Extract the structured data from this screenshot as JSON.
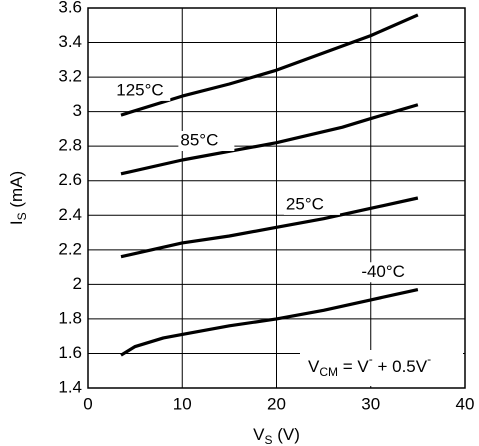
{
  "chart_data": {
    "type": "line",
    "xlabel": [
      "V",
      "S",
      " (V)"
    ],
    "ylabel": [
      "I",
      "S",
      " (mA)"
    ],
    "annotation": [
      "V",
      "CM",
      " = V",
      "-",
      " + 0.5V",
      "-"
    ],
    "xlim": [
      0,
      40
    ],
    "xticks": [
      0,
      10,
      20,
      30,
      40
    ],
    "ylim": [
      1.4,
      3.6
    ],
    "yticks": [
      1.4,
      1.6,
      1.8,
      2,
      2.2,
      2.4,
      2.6,
      2.8,
      3,
      3.2,
      3.4,
      3.6
    ],
    "grid": true,
    "series": [
      {
        "name": "125°C",
        "color": "#000000",
        "x": [
          3.5,
          10,
          15,
          20,
          25,
          30,
          35
        ],
        "values": [
          2.98,
          3.09,
          3.16,
          3.24,
          3.34,
          3.44,
          3.56
        ]
      },
      {
        "name": "85°C",
        "color": "#000000",
        "x": [
          3.5,
          10,
          15,
          20,
          27,
          30,
          35
        ],
        "values": [
          2.64,
          2.72,
          2.77,
          2.82,
          2.91,
          2.96,
          3.04
        ]
      },
      {
        "name": "25°C",
        "color": "#000000",
        "x": [
          3.5,
          10,
          15,
          20,
          25,
          30,
          35
        ],
        "values": [
          2.16,
          2.24,
          2.28,
          2.33,
          2.38,
          2.44,
          2.5
        ]
      },
      {
        "name": "-40°C",
        "color": "#000000",
        "x": [
          3.5,
          5,
          8,
          10,
          15,
          20,
          25,
          30,
          35
        ],
        "values": [
          1.59,
          1.64,
          1.69,
          1.71,
          1.76,
          1.8,
          1.85,
          1.91,
          1.97
        ]
      }
    ]
  }
}
